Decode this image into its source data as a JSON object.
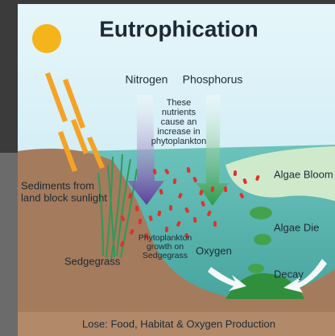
{
  "title": "Eutrophication",
  "labels": {
    "nitrogen": "Nitrogen",
    "phosphorus": "Phosphorus",
    "note": [
      "These",
      "nutrients",
      "cause an",
      "increase in",
      "phytoplankton"
    ],
    "sediments": [
      "Sediments from",
      "land block sunlight"
    ],
    "algae_bloom": "Algae Bloom",
    "algae_die": "Algae Die",
    "phytoplankton_growth": [
      "Phytoplankton",
      "growth on",
      "Sedgegrass"
    ],
    "oxygen": "Oxygen",
    "sedgegrass": "Sedgegrass",
    "decay": "Decay",
    "footer": "Lose: Food, Habitat & Oxygen Production"
  }
}
